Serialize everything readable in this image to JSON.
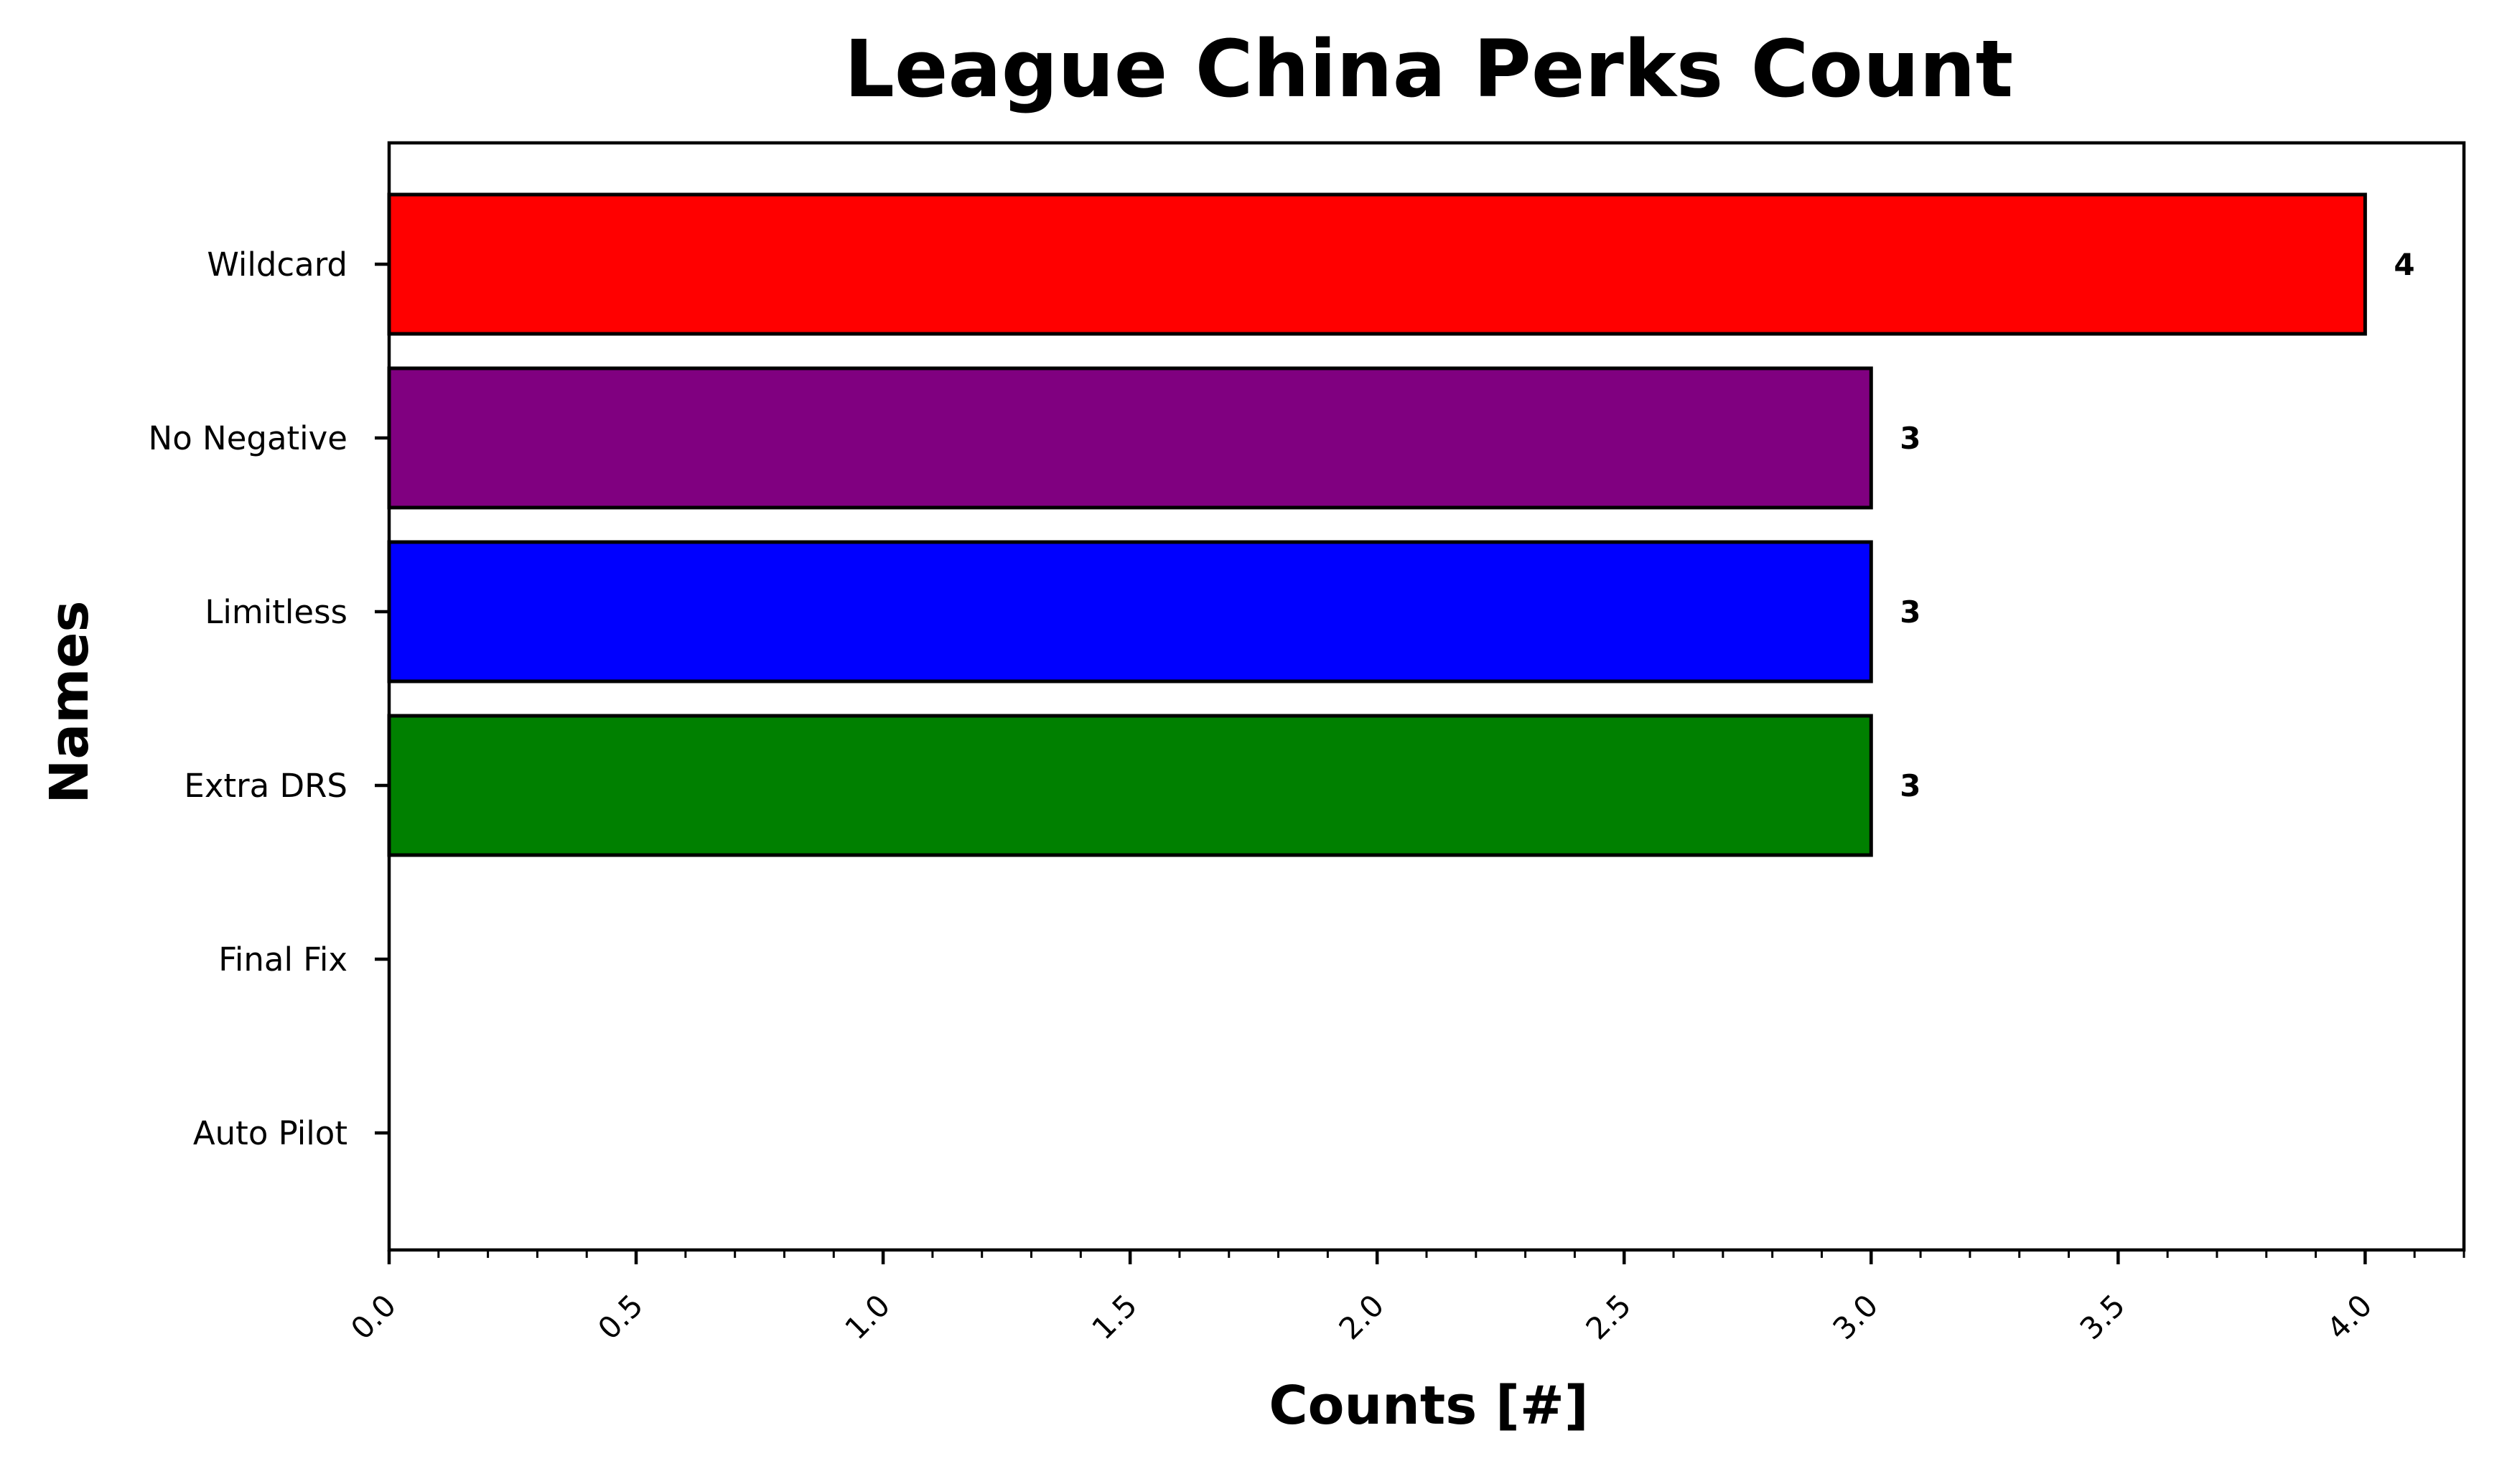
{
  "chart_data": {
    "type": "bar",
    "orientation": "horizontal",
    "title": "League China Perks Count",
    "xlabel": "Counts [#]",
    "ylabel": "Names",
    "categories": [
      "Wildcard",
      "No Negative",
      "Limitless",
      "Extra DRS",
      "Final Fix",
      "Auto Pilot"
    ],
    "values": [
      4,
      3,
      3,
      3,
      0,
      0
    ],
    "value_labels": [
      "4",
      "3",
      "3",
      "3",
      "",
      ""
    ],
    "colors": [
      "#ff0000",
      "#800080",
      "#0000ff",
      "#008000",
      "#008000",
      "#008000"
    ],
    "xlim": [
      0,
      4.2
    ],
    "xticks": [
      0.0,
      0.5,
      1.0,
      1.5,
      2.0,
      2.5,
      3.0,
      3.5,
      4.0
    ],
    "xtick_labels": [
      "0.0",
      "0.5",
      "1.0",
      "1.5",
      "2.0",
      "2.5",
      "3.0",
      "3.5",
      "4.0"
    ],
    "minor_xtick_step": 0.1,
    "grid": false,
    "legend": "none"
  }
}
